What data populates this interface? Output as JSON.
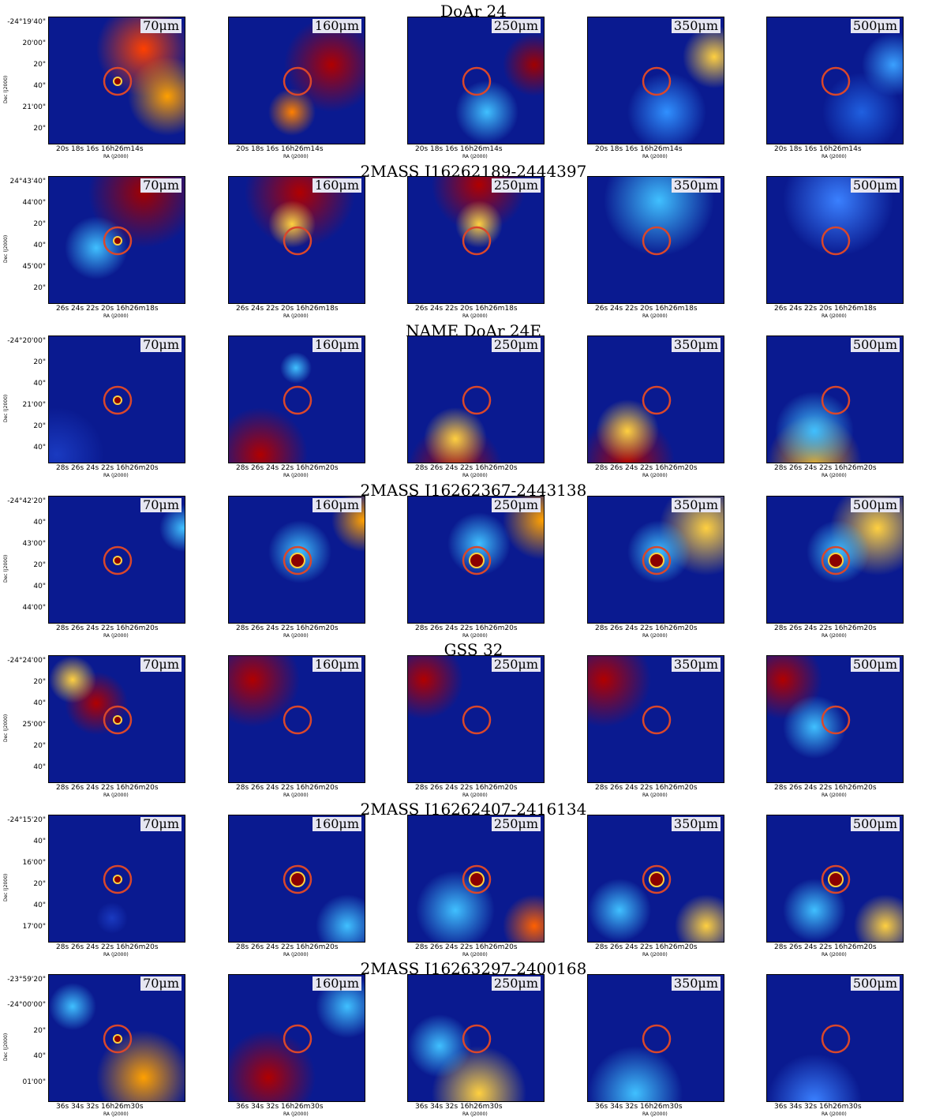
{
  "bands": [
    "70$\\mu$m",
    "160$\\mu$m",
    "250$\\mu$m",
    "350$\\mu$m",
    "500$\\mu$m"
  ],
  "band_labels": [
    "70μm",
    "160μm",
    "250μm",
    "350μm",
    "500μm"
  ],
  "axis_labels": {
    "x": "RA (J2000)",
    "y": "Dec (J2000)"
  },
  "rows": [
    {
      "title": "DoAr 24",
      "yticks": [
        "-24°19'40\"",
        "20'00\"",
        "20\"",
        "40\"",
        "21'00\"",
        "20\""
      ],
      "xticks": [
        "20s",
        "18s",
        "16s 16h26m14s"
      ],
      "bg": [
        "#0a1a90",
        "#0a1a90",
        "#0a1a90",
        "#0a1a90",
        "#0a1a90"
      ]
    },
    {
      "title": "2MASS J16262189-2444397",
      "yticks": [
        "24°43'40\"",
        "44'00\"",
        "20\"",
        "40\"",
        "45'00\"",
        "20\""
      ],
      "xticks": [
        "26s",
        "24s",
        "22s",
        "20s 16h26m18s"
      ],
      "bg": [
        "#0a1a90",
        "#0a1a90",
        "#0a1a90",
        "#0a1a90",
        "#0a1a90"
      ]
    },
    {
      "title": "NAME DoAr 24E",
      "yticks": [
        "-24°20'00\"",
        "20\"",
        "40\"",
        "21'00\"",
        "20\"",
        "40\""
      ],
      "xticks": [
        "28s",
        "26s",
        "24s",
        "22s 16h26m20s"
      ],
      "bg": [
        "#0a1a90",
        "#0a1a90",
        "#0a1a90",
        "#0a1a90",
        "#0a1a90"
      ]
    },
    {
      "title": "2MASS J16262367-2443138",
      "yticks": [
        "-24°42'20\"",
        "40\"",
        "43'00\"",
        "20\"",
        "40\"",
        "44'00\""
      ],
      "xticks": [
        "28s",
        "26s",
        "24s",
        "22s 16h26m20s"
      ],
      "bg": [
        "#0a1a90",
        "#0a1a90",
        "#0a1a90",
        "#0a1a90",
        "#0a1a90"
      ]
    },
    {
      "title": "GSS 32",
      "yticks": [
        "-24°24'00\"",
        "20\"",
        "40\"",
        "25'00\"",
        "20\"",
        "40\""
      ],
      "xticks": [
        "28s",
        "26s",
        "24s",
        "22s 16h26m20s"
      ],
      "bg": [
        "#0a1a90",
        "#0a1a90",
        "#0a1a90",
        "#0a1a90",
        "#0a1a90"
      ]
    },
    {
      "title": "2MASS J16262407-2416134",
      "yticks": [
        "-24°15'20\"",
        "40\"",
        "16'00\"",
        "20\"",
        "40\"",
        "17'00\""
      ],
      "xticks": [
        "28s",
        "26s",
        "24s",
        "22s 16h26m20s"
      ],
      "bg": [
        "#0a1a90",
        "#0a1a90",
        "#0a1a90",
        "#0a1a90",
        "#0a1a90"
      ]
    },
    {
      "title": "2MASS J16263297-2400168",
      "yticks": [
        "-23°59'20\"",
        "-24°00'00\"",
        "20\"",
        "40\"",
        "01'00\""
      ],
      "xticks": [
        "36s",
        "34s",
        "32s 16h26m30s"
      ],
      "bg": [
        "#0a1a90",
        "#0a1a90",
        "#0a1a90",
        "#0a1a90",
        "#0a1a90"
      ]
    }
  ],
  "colors": {
    "background": "#0a1a90",
    "marker": "#d9472b",
    "hot": "#8b0000"
  }
}
